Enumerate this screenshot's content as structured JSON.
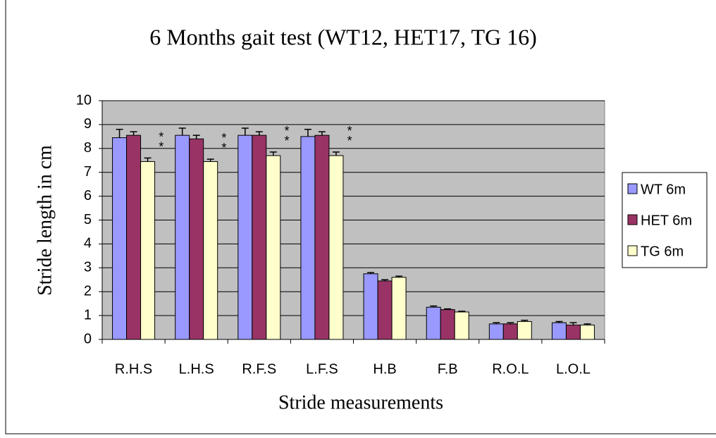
{
  "chart_data": {
    "type": "bar",
    "title": "6 Months gait test (WT12, HET17, TG 16)",
    "x_label": "Stride measurements",
    "y_label": "Stride length in cm",
    "categories": [
      "R.H.S",
      "L.H.S",
      "R.F.S",
      "L.F.S",
      "H.B",
      "F.B",
      "R.O.L",
      "L.O.L"
    ],
    "series": [
      {
        "name": "WT 6m",
        "color": "#9999ff",
        "values": [
          8.45,
          8.55,
          8.55,
          8.5,
          2.75,
          1.35,
          0.65,
          0.7
        ],
        "errors": [
          0.35,
          0.3,
          0.3,
          0.3,
          0.05,
          0.05,
          0.05,
          0.05
        ]
      },
      {
        "name": "HET 6m",
        "color": "#993366",
        "values": [
          8.55,
          8.4,
          8.55,
          8.55,
          2.45,
          1.25,
          0.65,
          0.6
        ],
        "errors": [
          0.15,
          0.15,
          0.15,
          0.15,
          0.05,
          0.03,
          0.05,
          0.1
        ]
      },
      {
        "name": "TG 6m",
        "color": "#ffffcc",
        "values": [
          7.45,
          7.45,
          7.7,
          7.7,
          2.6,
          1.15,
          0.75,
          0.6
        ],
        "errors": [
          0.15,
          0.1,
          0.15,
          0.15,
          0.05,
          0.03,
          0.05,
          0.05
        ]
      }
    ],
    "annotations": [
      {
        "text": "**",
        "category": 0,
        "series": 2
      },
      {
        "text": "**",
        "category": 1,
        "series": 2
      },
      {
        "text": "**",
        "category": 2,
        "series": 2
      },
      {
        "text": "**",
        "category": 3,
        "series": 2
      }
    ],
    "ylim": [
      0,
      10
    ],
    "yticks": [
      0,
      1,
      2,
      3,
      4,
      5,
      6,
      7,
      8,
      9,
      10
    ],
    "grid": true,
    "plot_background": "#c0c0c0",
    "legend": "right"
  }
}
